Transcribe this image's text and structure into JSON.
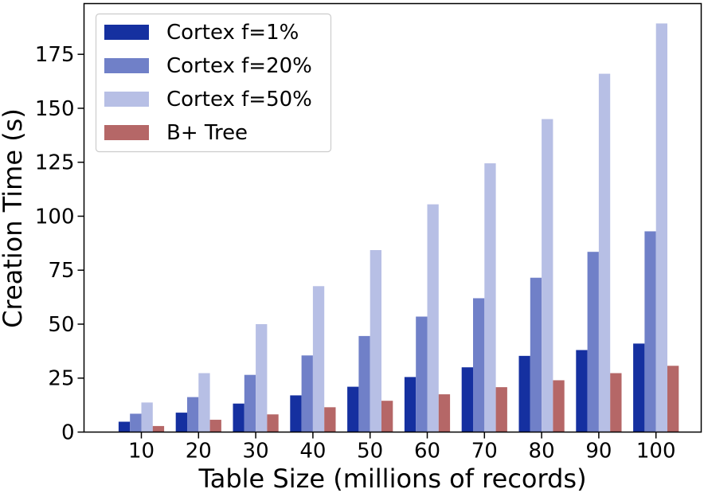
{
  "chart_data": {
    "type": "bar",
    "title": "",
    "xlabel": "Table Size (millions of records)",
    "ylabel": "Creation Time (s)",
    "categories": [
      "10",
      "20",
      "30",
      "40",
      "50",
      "60",
      "70",
      "80",
      "90",
      "100"
    ],
    "yticks": [
      0,
      25,
      50,
      75,
      100,
      125,
      150,
      175
    ],
    "ylim": [
      0,
      198.5
    ],
    "legend_position": "top-left",
    "grid": false,
    "series": [
      {
        "name": "Cortex f=1%",
        "color": "#1530a0",
        "values": [
          4.8,
          9.0,
          13.2,
          17.0,
          21.0,
          25.5,
          30.0,
          35.3,
          38.0,
          41.0
        ]
      },
      {
        "name": "Cortex f=20%",
        "color": "#7080c8",
        "values": [
          8.5,
          16.2,
          26.5,
          35.5,
          44.5,
          53.5,
          62.0,
          71.5,
          83.5,
          93.0
        ]
      },
      {
        "name": "Cortex f=50%",
        "color": "#b7bfe5",
        "values": [
          13.7,
          27.3,
          50.0,
          67.6,
          84.3,
          105.5,
          124.5,
          145.0,
          166.0,
          189.3
        ]
      },
      {
        "name": "B+ Tree",
        "color": "#b56767",
        "values": [
          2.8,
          5.7,
          8.2,
          11.5,
          14.5,
          17.5,
          20.8,
          24.0,
          27.3,
          30.7
        ]
      }
    ]
  }
}
